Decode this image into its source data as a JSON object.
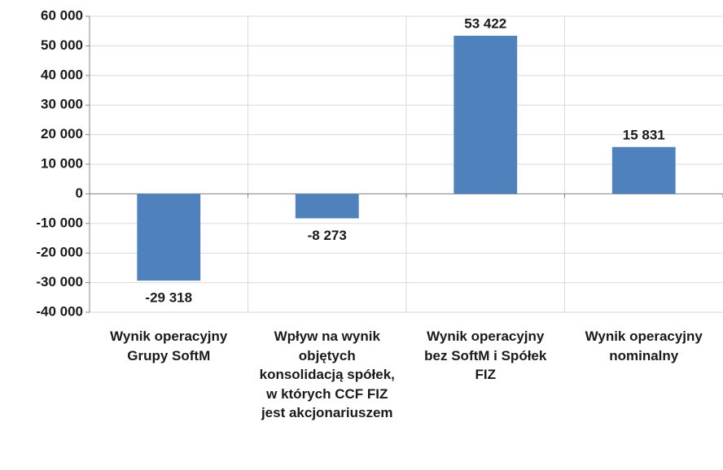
{
  "chart_data": {
    "type": "bar",
    "categories": [
      "Wynik operacyjny Grupy SoftM",
      "Wpływ na wynik objętych konsolidacją spółek, w których CCF FIZ jest akcjonariuszem",
      "Wynik operacyjny bez SoftM i Spółek FIZ",
      "Wynik operacyjny nominalny"
    ],
    "values": [
      -29318,
      -8273,
      53422,
      15831
    ],
    "value_labels": [
      "-29 318",
      "-8 273",
      "53 422",
      "15 831"
    ],
    "color": "#4f81bd",
    "ylim": [
      -40000,
      60000
    ],
    "yticks": [
      {
        "value": -40000,
        "label": "-40 000"
      },
      {
        "value": -30000,
        "label": "-30 000"
      },
      {
        "value": -20000,
        "label": "-20 000"
      },
      {
        "value": -10000,
        "label": "-10 000"
      },
      0,
      {
        "value": 10000,
        "label": "10 000"
      },
      {
        "value": 20000,
        "label": "20 000"
      },
      {
        "value": 30000,
        "label": "30 000"
      },
      {
        "value": 40000,
        "label": "40 000"
      },
      {
        "value": 50000,
        "label": "50 000"
      },
      {
        "value": 60000,
        "label": "60 000"
      }
    ],
    "grid": true
  }
}
